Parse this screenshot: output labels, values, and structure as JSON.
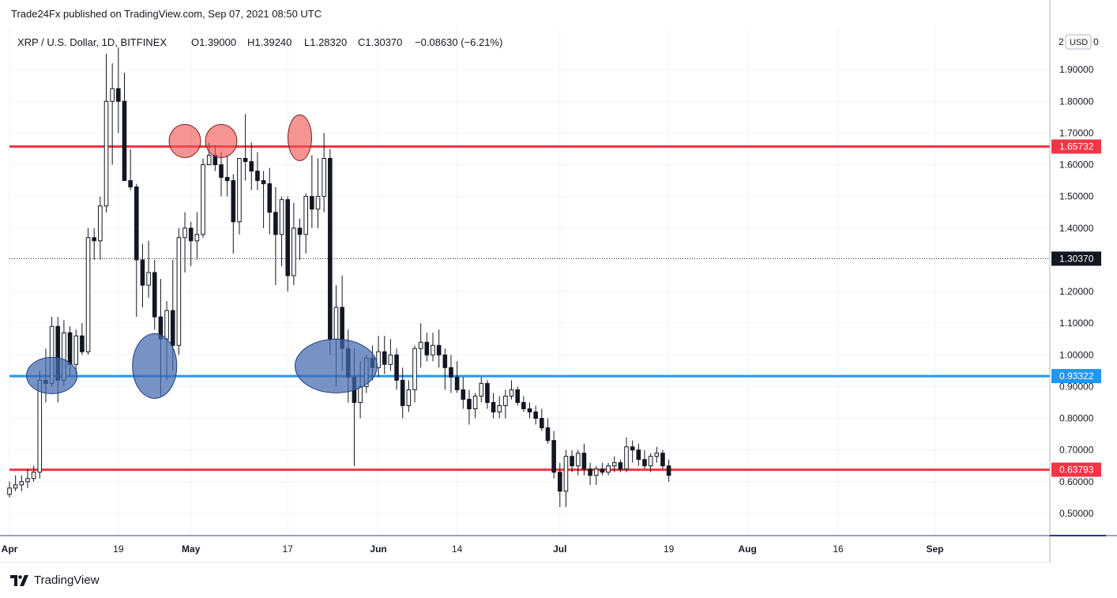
{
  "header": {
    "publisher": "Trade24Fx published on TradingView.com, Sep 07, 2021 08:50 UTC"
  },
  "footer": {
    "brand": "TradingView"
  },
  "chart_data": {
    "type": "candlestick",
    "symbol_line": "XRP / U.S. Dollar, 1D, BITFINEX",
    "ohlc_line": {
      "open": "O1.39000",
      "high": "H1.39240",
      "low": "L1.28320",
      "close": "C1.30370",
      "change": "−0.08630 (−6.21%)"
    },
    "currency_label": "USD",
    "y_axis_top_label": "2",
    "y_axis_partial_label": "0",
    "ylim": [
      0.43,
      2.03
    ],
    "y_ticks": [
      {
        "v": 0.5,
        "label": "0.50000"
      },
      {
        "v": 0.6,
        "label": "0.60000"
      },
      {
        "v": 0.7,
        "label": "0.70000"
      },
      {
        "v": 0.8,
        "label": "0.80000"
      },
      {
        "v": 0.9,
        "label": "0.90000"
      },
      {
        "v": 1.0,
        "label": "1.00000"
      },
      {
        "v": 1.1,
        "label": "1.10000"
      },
      {
        "v": 1.2,
        "label": "1.20000"
      },
      {
        "v": 1.4,
        "label": "1.40000"
      },
      {
        "v": 1.5,
        "label": "1.50000"
      },
      {
        "v": 1.6,
        "label": "1.60000"
      },
      {
        "v": 1.7,
        "label": "1.70000"
      },
      {
        "v": 1.8,
        "label": "1.80000"
      },
      {
        "v": 1.9,
        "label": "1.90000"
      }
    ],
    "x_ticks": [
      {
        "date": "2021-04-01",
        "label": "Apr",
        "bold": true
      },
      {
        "date": "2021-04-19",
        "label": "19",
        "bold": false
      },
      {
        "date": "2021-05-01",
        "label": "May",
        "bold": true
      },
      {
        "date": "2021-05-17",
        "label": "17",
        "bold": false
      },
      {
        "date": "2021-06-01",
        "label": "Jun",
        "bold": true
      },
      {
        "date": "2021-06-14",
        "label": "14",
        "bold": false
      },
      {
        "date": "2021-07-01",
        "label": "Jul",
        "bold": true
      },
      {
        "date": "2021-07-19",
        "label": "19",
        "bold": false
      },
      {
        "date": "2021-08-01",
        "label": "Aug",
        "bold": true
      },
      {
        "date": "2021-08-16",
        "label": "16",
        "bold": false
      },
      {
        "date": "2021-09-01",
        "label": "Sep",
        "bold": true
      }
    ],
    "x_range": [
      "2021-04-01",
      "2021-09-20"
    ],
    "horizontal_levels": [
      {
        "value": 1.65732,
        "label": "1.65732",
        "color": "#f23645"
      },
      {
        "value": 0.93322,
        "label": "0.93322",
        "color": "#2196f3"
      },
      {
        "value": 0.63793,
        "label": "0.63793",
        "color": "#f23645"
      }
    ],
    "last_price": {
      "value": 1.3037,
      "label": "1.30370"
    },
    "ellipses": [
      {
        "date": "2021-04-08",
        "price": 0.935,
        "color": "blue"
      },
      {
        "date": "2021-04-25",
        "price": 0.965,
        "color": "blue"
      },
      {
        "date": "2021-05-25",
        "price": 0.965,
        "color": "blue"
      },
      {
        "date": "2021-04-30",
        "price": 1.675,
        "color": "red"
      },
      {
        "date": "2021-05-06",
        "price": 1.675,
        "color": "red"
      },
      {
        "date": "2021-05-19",
        "price": 1.685,
        "color": "red"
      }
    ],
    "candles": [
      [
        "2021-04-01",
        0.56,
        0.6,
        0.55,
        0.58
      ],
      [
        "2021-04-02",
        0.58,
        0.62,
        0.57,
        0.59
      ],
      [
        "2021-04-03",
        0.59,
        0.62,
        0.57,
        0.6
      ],
      [
        "2021-04-04",
        0.6,
        0.64,
        0.58,
        0.61
      ],
      [
        "2021-04-05",
        0.61,
        0.65,
        0.6,
        0.63
      ],
      [
        "2021-04-06",
        0.63,
        0.95,
        0.61,
        0.92
      ],
      [
        "2021-04-07",
        0.92,
        1.02,
        0.85,
        0.91
      ],
      [
        "2021-04-08",
        0.91,
        1.12,
        0.9,
        1.09
      ],
      [
        "2021-04-09",
        1.09,
        1.12,
        0.85,
        0.92
      ],
      [
        "2021-04-10",
        0.92,
        1.11,
        0.9,
        1.07
      ],
      [
        "2021-04-11",
        1.07,
        1.09,
        0.93,
        0.97
      ],
      [
        "2021-04-12",
        0.97,
        1.08,
        0.94,
        1.06
      ],
      [
        "2021-04-13",
        1.06,
        1.1,
        1.0,
        1.01
      ],
      [
        "2021-04-14",
        1.01,
        1.4,
        1.0,
        1.37
      ],
      [
        "2021-04-15",
        1.37,
        1.4,
        1.3,
        1.36
      ],
      [
        "2021-04-16",
        1.36,
        1.5,
        1.3,
        1.47
      ],
      [
        "2021-04-17",
        1.47,
        1.95,
        1.45,
        1.8
      ],
      [
        "2021-04-18",
        1.8,
        1.92,
        1.6,
        1.84
      ],
      [
        "2021-04-19",
        1.84,
        1.97,
        1.7,
        1.8
      ],
      [
        "2021-04-20",
        1.8,
        1.89,
        1.55,
        1.55
      ],
      [
        "2021-04-21",
        1.55,
        1.65,
        1.52,
        1.53
      ],
      [
        "2021-04-22",
        1.53,
        1.54,
        1.12,
        1.3
      ],
      [
        "2021-04-23",
        1.3,
        1.35,
        1.15,
        1.22
      ],
      [
        "2021-04-24",
        1.22,
        1.36,
        1.18,
        1.26
      ],
      [
        "2021-04-25",
        1.26,
        1.3,
        1.08,
        1.12
      ],
      [
        "2021-04-26",
        1.12,
        1.24,
        0.87,
        1.05
      ],
      [
        "2021-04-27",
        1.05,
        1.17,
        0.92,
        1.14
      ],
      [
        "2021-04-28",
        1.14,
        1.3,
        0.95,
        1.03
      ],
      [
        "2021-04-29",
        1.03,
        1.4,
        1.0,
        1.37
      ],
      [
        "2021-04-30",
        1.37,
        1.45,
        1.26,
        1.4
      ],
      [
        "2021-05-01",
        1.4,
        1.42,
        1.28,
        1.36
      ],
      [
        "2021-05-02",
        1.36,
        1.45,
        1.3,
        1.38
      ],
      [
        "2021-05-03",
        1.38,
        1.62,
        1.37,
        1.6
      ],
      [
        "2021-05-04",
        1.6,
        1.67,
        1.6,
        1.63
      ],
      [
        "2021-05-05",
        1.63,
        1.66,
        1.58,
        1.6
      ],
      [
        "2021-05-06",
        1.6,
        1.64,
        1.5,
        1.56
      ],
      [
        "2021-05-07",
        1.56,
        1.63,
        1.5,
        1.55
      ],
      [
        "2021-05-08",
        1.55,
        1.57,
        1.32,
        1.42
      ],
      [
        "2021-05-09",
        1.42,
        1.62,
        1.38,
        1.62
      ],
      [
        "2021-05-10",
        1.62,
        1.76,
        1.55,
        1.61
      ],
      [
        "2021-05-11",
        1.61,
        1.67,
        1.52,
        1.58
      ],
      [
        "2021-05-12",
        1.58,
        1.64,
        1.52,
        1.55
      ],
      [
        "2021-05-13",
        1.55,
        1.58,
        1.4,
        1.54
      ],
      [
        "2021-05-14",
        1.54,
        1.59,
        1.38,
        1.45
      ],
      [
        "2021-05-15",
        1.45,
        1.53,
        1.22,
        1.38
      ],
      [
        "2021-05-16",
        1.38,
        1.5,
        1.28,
        1.49
      ],
      [
        "2021-05-17",
        1.49,
        1.5,
        1.2,
        1.25
      ],
      [
        "2021-05-18",
        1.25,
        1.48,
        1.22,
        1.4
      ],
      [
        "2021-05-19",
        1.4,
        1.43,
        1.3,
        1.38
      ],
      [
        "2021-05-20",
        1.38,
        1.51,
        1.32,
        1.5
      ],
      [
        "2021-05-21",
        1.5,
        1.63,
        1.4,
        1.46
      ],
      [
        "2021-05-22",
        1.46,
        1.62,
        1.4,
        1.5
      ],
      [
        "2021-05-23",
        1.5,
        1.7,
        1.45,
        1.62
      ],
      [
        "2021-05-24",
        1.62,
        1.65,
        1.0,
        1.05
      ],
      [
        "2021-05-25",
        1.05,
        1.22,
        0.9,
        1.15
      ],
      [
        "2021-05-26",
        1.15,
        1.25,
        0.95,
        1.02
      ],
      [
        "2021-05-27",
        1.02,
        1.08,
        0.85,
        0.93
      ],
      [
        "2021-05-28",
        0.93,
        1.02,
        0.65,
        0.85
      ],
      [
        "2021-05-29",
        0.85,
        0.98,
        0.8,
        0.9
      ],
      [
        "2021-05-30",
        0.9,
        1.0,
        0.88,
        0.99
      ],
      [
        "2021-05-31",
        0.99,
        1.03,
        0.92,
        0.96
      ],
      [
        "2021-06-01",
        0.96,
        1.06,
        0.93,
        1.01
      ],
      [
        "2021-06-02",
        1.01,
        1.06,
        0.94,
        0.97
      ],
      [
        "2021-06-03",
        0.97,
        1.05,
        0.95,
        1.0
      ],
      [
        "2021-06-04",
        1.0,
        1.02,
        0.89,
        0.92
      ],
      [
        "2021-06-05",
        0.92,
        0.96,
        0.8,
        0.84
      ],
      [
        "2021-06-06",
        0.84,
        0.92,
        0.82,
        0.89
      ],
      [
        "2021-06-07",
        0.89,
        1.03,
        0.85,
        1.02
      ],
      [
        "2021-06-08",
        1.02,
        1.1,
        0.96,
        1.04
      ],
      [
        "2021-06-09",
        1.04,
        1.07,
        0.98,
        1.0
      ],
      [
        "2021-06-10",
        1.0,
        1.07,
        0.98,
        1.03
      ],
      [
        "2021-06-11",
        1.03,
        1.08,
        0.96,
        1.0
      ],
      [
        "2021-06-12",
        1.0,
        1.02,
        0.89,
        0.96
      ],
      [
        "2021-06-13",
        0.96,
        1.0,
        0.88,
        0.93
      ],
      [
        "2021-06-14",
        0.93,
        0.98,
        0.88,
        0.89
      ],
      [
        "2021-06-15",
        0.89,
        0.93,
        0.83,
        0.86
      ],
      [
        "2021-06-16",
        0.86,
        0.89,
        0.78,
        0.83
      ],
      [
        "2021-06-17",
        0.83,
        0.88,
        0.8,
        0.87
      ],
      [
        "2021-06-18",
        0.87,
        0.93,
        0.85,
        0.91
      ],
      [
        "2021-06-19",
        0.91,
        0.92,
        0.83,
        0.85
      ],
      [
        "2021-06-20",
        0.85,
        0.88,
        0.8,
        0.82
      ],
      [
        "2021-06-21",
        0.82,
        0.87,
        0.8,
        0.84
      ],
      [
        "2021-06-22",
        0.84,
        0.89,
        0.8,
        0.87
      ],
      [
        "2021-06-23",
        0.87,
        0.92,
        0.86,
        0.89
      ],
      [
        "2021-06-24",
        0.89,
        0.9,
        0.84,
        0.85
      ],
      [
        "2021-06-25",
        0.85,
        0.87,
        0.82,
        0.83
      ],
      [
        "2021-06-26",
        0.83,
        0.85,
        0.8,
        0.82
      ],
      [
        "2021-06-27",
        0.82,
        0.84,
        0.78,
        0.8
      ],
      [
        "2021-06-28",
        0.8,
        0.83,
        0.76,
        0.77
      ],
      [
        "2021-06-29",
        0.77,
        0.8,
        0.72,
        0.73
      ],
      [
        "2021-06-30",
        0.73,
        0.76,
        0.61,
        0.63
      ],
      [
        "2021-07-01",
        0.63,
        0.66,
        0.52,
        0.57
      ],
      [
        "2021-07-02",
        0.57,
        0.7,
        0.52,
        0.68
      ],
      [
        "2021-07-03",
        0.68,
        0.7,
        0.63,
        0.65
      ],
      [
        "2021-07-04",
        0.65,
        0.7,
        0.62,
        0.69
      ],
      [
        "2021-07-05",
        0.69,
        0.72,
        0.62,
        0.64
      ],
      [
        "2021-07-06",
        0.64,
        0.66,
        0.59,
        0.62
      ],
      [
        "2021-07-07",
        0.62,
        0.65,
        0.59,
        0.64
      ],
      [
        "2021-07-08",
        0.64,
        0.66,
        0.62,
        0.63
      ],
      [
        "2021-07-09",
        0.63,
        0.66,
        0.62,
        0.65
      ],
      [
        "2021-07-10",
        0.65,
        0.68,
        0.63,
        0.66
      ],
      [
        "2021-07-11",
        0.66,
        0.67,
        0.63,
        0.64
      ],
      [
        "2021-07-12",
        0.64,
        0.74,
        0.63,
        0.71
      ],
      [
        "2021-07-13",
        0.71,
        0.73,
        0.66,
        0.7
      ],
      [
        "2021-07-14",
        0.7,
        0.72,
        0.65,
        0.67
      ],
      [
        "2021-07-15",
        0.67,
        0.7,
        0.64,
        0.65
      ],
      [
        "2021-07-16",
        0.65,
        0.69,
        0.63,
        0.68
      ],
      [
        "2021-07-17",
        0.68,
        0.71,
        0.66,
        0.69
      ],
      [
        "2021-07-18",
        0.69,
        0.7,
        0.64,
        0.65
      ],
      [
        "2021-07-19",
        0.65,
        0.67,
        0.6,
        0.62
      ]
    ]
  }
}
